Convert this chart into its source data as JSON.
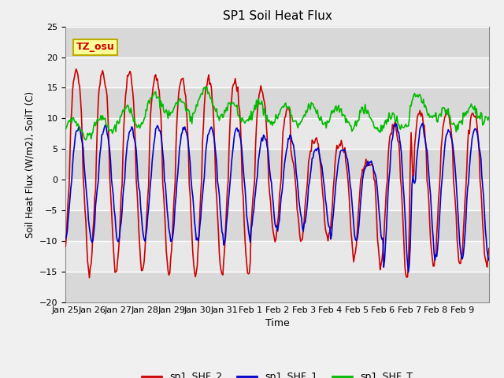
{
  "title": "SP1 Soil Heat Flux",
  "xlabel": "Time",
  "ylabel": "Soil Heat Flux (W/m2), SoilT (C)",
  "ylim": [
    -20,
    25
  ],
  "yticks": [
    -20,
    -15,
    -10,
    -5,
    0,
    5,
    10,
    15,
    20,
    25
  ],
  "xtick_labels": [
    "Jan 25",
    "Jan 26",
    "Jan 27",
    "Jan 28",
    "Jan 29",
    "Jan 30",
    "Jan 31",
    "Feb 1",
    "Feb 2",
    "Feb 3",
    "Feb 4",
    "Feb 5",
    "Feb 6",
    "Feb 7",
    "Feb 8",
    "Feb 9"
  ],
  "line_colors": {
    "sp1_SHF_2": "#cc0000",
    "sp1_SHF_1": "#0000cc",
    "sp1_SHF_T": "#00bb00"
  },
  "line_width": 1.2,
  "bg_color": "#f0f0f0",
  "plot_bg_color": "#e8e8e8",
  "annotation_text": "TZ_osu",
  "annotation_bg": "#ffff99",
  "annotation_border": "#bbaa00",
  "legend_labels": [
    "sp1_SHF_2",
    "sp1_SHF_1",
    "sp1_SHF_T"
  ],
  "band_colors": [
    "#d8d8d8",
    "#e8e8e8"
  ],
  "n_points": 480
}
